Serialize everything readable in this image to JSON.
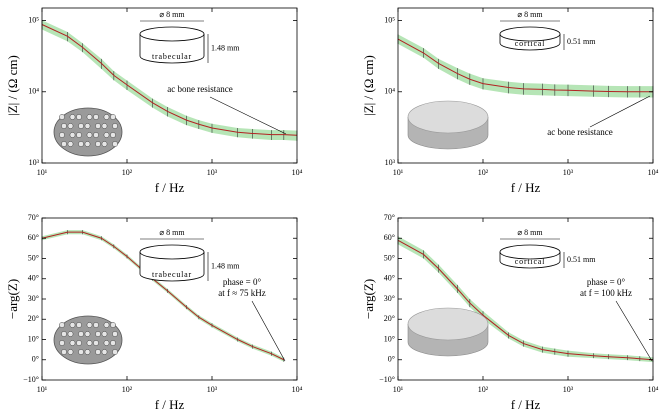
{
  "chart_data": [
    {
      "type": "line",
      "x_label": "f / Hz",
      "y_label": "|Z| / (Ω cm)",
      "xscale": "log",
      "yscale": "log",
      "xlim": [
        10,
        10000
      ],
      "ylim": [
        1000,
        150000
      ],
      "xticks": [
        {
          "value": 10,
          "label": "10¹"
        },
        {
          "value": 100,
          "label": "10²"
        },
        {
          "value": 1000,
          "label": "10³"
        },
        {
          "value": 10000,
          "label": "10⁴"
        }
      ],
      "yticks": [
        {
          "value": 1000,
          "label": "10³"
        },
        {
          "value": 10000,
          "label": "10⁴"
        },
        {
          "value": 100000,
          "label": "10⁵"
        }
      ],
      "x": [
        10,
        20,
        30,
        50,
        70,
        100,
        200,
        300,
        500,
        700,
        1000,
        2000,
        3000,
        5000,
        7000,
        10000
      ],
      "values": [
        88000,
        60000,
        42000,
        25000,
        17000,
        12500,
        7000,
        5300,
        4000,
        3500,
        3100,
        2700,
        2600,
        2500,
        2500,
        2450
      ],
      "band_lower": [
        75000,
        51000,
        36000,
        21000,
        14500,
        10600,
        6000,
        4500,
        3400,
        3000,
        2650,
        2300,
        2200,
        2100,
        2100,
        2050
      ],
      "band_upper": [
        101000,
        69000,
        48000,
        29000,
        19500,
        14400,
        8000,
        6100,
        4600,
        4000,
        3550,
        3100,
        3000,
        2900,
        2900,
        2850
      ],
      "color": "#b22222",
      "band_color": "#9ddc9d",
      "annotation": [
        "ac bone resistance"
      ],
      "inset": {
        "diameter": "⌀ 8 mm",
        "height": "1.48 mm",
        "material": "trabecular"
      }
    },
    {
      "type": "line",
      "x_label": "f / Hz",
      "y_label": "|Z| / (Ω cm)",
      "xscale": "log",
      "yscale": "log",
      "xlim": [
        10,
        10000
      ],
      "ylim": [
        1000,
        150000
      ],
      "xticks": [
        {
          "value": 10,
          "label": "10¹"
        },
        {
          "value": 100,
          "label": "10²"
        },
        {
          "value": 1000,
          "label": "10³"
        },
        {
          "value": 10000,
          "label": "10⁴"
        }
      ],
      "yticks": [
        {
          "value": 1000,
          "label": "10³"
        },
        {
          "value": 10000,
          "label": "10⁴"
        },
        {
          "value": 100000,
          "label": "10⁵"
        }
      ],
      "x": [
        10,
        20,
        30,
        50,
        70,
        100,
        200,
        300,
        500,
        700,
        1000,
        2000,
        3000,
        5000,
        7000,
        10000
      ],
      "values": [
        55000,
        35000,
        25000,
        18000,
        15000,
        13000,
        11500,
        11000,
        10800,
        10600,
        10500,
        10200,
        10100,
        10000,
        10000,
        10000
      ],
      "band_lower": [
        47000,
        30000,
        21000,
        15000,
        12500,
        10800,
        9500,
        9100,
        8900,
        8800,
        8700,
        8500,
        8400,
        8300,
        8300,
        8300
      ],
      "band_upper": [
        64000,
        41000,
        29000,
        21500,
        18000,
        15500,
        13800,
        13200,
        13000,
        12700,
        12600,
        12300,
        12100,
        12000,
        12000,
        12000
      ],
      "color": "#b22222",
      "band_color": "#9ddc9d",
      "annotation": [
        "ac bone resistance"
      ],
      "inset": {
        "diameter": "⌀ 8 mm",
        "height": "0.51 mm",
        "material": "cortical"
      }
    },
    {
      "type": "line",
      "x_label": "f / Hz",
      "y_label": "−arg(Z)",
      "xscale": "log",
      "xlim": [
        10,
        10000
      ],
      "ylim": [
        -10,
        70
      ],
      "xticks": [
        {
          "value": 10,
          "label": "10¹"
        },
        {
          "value": 100,
          "label": "10²"
        },
        {
          "value": 1000,
          "label": "10³"
        },
        {
          "value": 10000,
          "label": "10⁴"
        }
      ],
      "yticks": [
        {
          "value": -10,
          "label": "−10°"
        },
        {
          "value": 0,
          "label": "0°"
        },
        {
          "value": 10,
          "label": "10°"
        },
        {
          "value": 20,
          "label": "20°"
        },
        {
          "value": 30,
          "label": "30°"
        },
        {
          "value": 40,
          "label": "40°"
        },
        {
          "value": 50,
          "label": "50°"
        },
        {
          "value": 60,
          "label": "60°"
        },
        {
          "value": 70,
          "label": "70°"
        }
      ],
      "x": [
        10,
        20,
        30,
        50,
        70,
        100,
        200,
        300,
        500,
        700,
        1000,
        2000,
        3000,
        5000,
        7000,
        10000
      ],
      "values": [
        60,
        63,
        63,
        60,
        56,
        51,
        40,
        34,
        26,
        21,
        17,
        10,
        6.5,
        3,
        0,
        null
      ],
      "band_lower": [
        59,
        62,
        62,
        59,
        55,
        50,
        39,
        33,
        25,
        20,
        16,
        9,
        5.5,
        2,
        -1,
        null
      ],
      "band_upper": [
        61,
        64,
        64,
        61,
        57,
        52,
        41,
        35,
        27,
        22,
        18,
        11,
        7.5,
        4,
        1,
        null
      ],
      "color": "#b22222",
      "band_color": "#9ddc9d",
      "annotation": [
        "phase = 0°",
        "at f ≈ 75 kHz"
      ],
      "inset": {
        "diameter": "⌀ 8 mm",
        "height": "1.48 mm",
        "material": "trabecular"
      }
    },
    {
      "type": "line",
      "x_label": "f / Hz",
      "y_label": "−arg(Z)",
      "xscale": "log",
      "xlim": [
        10,
        10000
      ],
      "ylim": [
        -10,
        70
      ],
      "xticks": [
        {
          "value": 10,
          "label": "10¹"
        },
        {
          "value": 100,
          "label": "10²"
        },
        {
          "value": 1000,
          "label": "10³"
        },
        {
          "value": 10000,
          "label": "10⁴"
        }
      ],
      "yticks": [
        {
          "value": -10,
          "label": "−10°"
        },
        {
          "value": 0,
          "label": "0°"
        },
        {
          "value": 10,
          "label": "10°"
        },
        {
          "value": 20,
          "label": "20°"
        },
        {
          "value": 30,
          "label": "30°"
        },
        {
          "value": 40,
          "label": "40°"
        },
        {
          "value": 50,
          "label": "50°"
        },
        {
          "value": 60,
          "label": "60°"
        },
        {
          "value": 70,
          "label": "70°"
        }
      ],
      "x": [
        10,
        20,
        30,
        50,
        70,
        100,
        200,
        300,
        500,
        700,
        1000,
        2000,
        3000,
        5000,
        7000,
        10000
      ],
      "values": [
        59,
        52,
        45,
        35,
        28,
        22,
        12,
        8,
        5,
        4,
        3,
        2,
        1.5,
        1,
        0.5,
        0
      ],
      "band_lower": [
        57,
        50,
        43,
        33,
        26,
        20,
        10.5,
        6.5,
        3.5,
        2.5,
        1.5,
        0.8,
        0.3,
        -0.2,
        -0.7,
        -1.2
      ],
      "band_upper": [
        61,
        54,
        47,
        37,
        30,
        24,
        13.5,
        9.5,
        6.5,
        5.5,
        4.5,
        3.2,
        2.7,
        2.2,
        1.7,
        1.2
      ],
      "color": "#b22222",
      "band_color": "#9ddc9d",
      "annotation": [
        "phase = 0°",
        "at f = 100 kHz"
      ],
      "inset": {
        "diameter": "⌀ 8 mm",
        "height": "0.51 mm",
        "material": "cortical"
      }
    }
  ]
}
